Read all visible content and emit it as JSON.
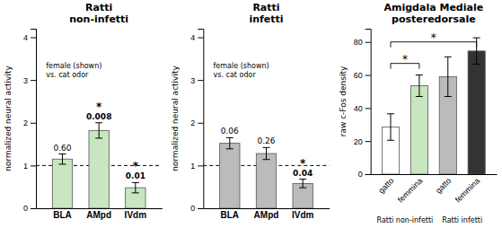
{
  "chart_data": [
    {
      "type": "bar",
      "title": "Ratti\nnon-infetti",
      "ylabel": "normalized neural activity",
      "annotation": "female (shown)\nvs. cat odor",
      "categories": [
        "BLA",
        "AMpd",
        "IVdm"
      ],
      "values": [
        1.15,
        1.82,
        0.48
      ],
      "errors": [
        0.12,
        0.18,
        0.12
      ],
      "colors": [
        "#c8e6c0",
        "#c8e6c0",
        "#c8e6c0"
      ],
      "pvalues": [
        "0.60",
        "0.008",
        "0.01"
      ],
      "stars": [
        null,
        "*",
        "*"
      ],
      "reference_line": 1.0,
      "ylim": [
        0,
        4.2
      ],
      "yticks": [
        0,
        1,
        2,
        3,
        4
      ]
    },
    {
      "type": "bar",
      "title": "Ratti\ninfetti",
      "ylabel": "normalized neural activity",
      "annotation": "female (shown)\nvs. cat odor",
      "categories": [
        "BLA",
        "AMpd",
        "IVdm"
      ],
      "values": [
        1.52,
        1.28,
        0.58
      ],
      "errors": [
        0.13,
        0.14,
        0.1
      ],
      "colors": [
        "#bbbbbb",
        "#bbbbbb",
        "#bbbbbb"
      ],
      "pvalues": [
        "0.06",
        "0.26",
        "0.04"
      ],
      "stars": [
        null,
        null,
        "*"
      ],
      "reference_line": 1.0,
      "ylim": [
        0,
        4.2
      ],
      "yticks": [
        0,
        1,
        2,
        3,
        4
      ]
    },
    {
      "type": "bar",
      "title": "Amigdala Mediale\nposteredorsale",
      "ylabel": "raw c-Fos density",
      "categories": [
        "gatto",
        "femmina",
        "gatto",
        "femmina"
      ],
      "group_labels": [
        "Ratti non-infetti",
        "Ratti infetti"
      ],
      "values": [
        28.5,
        53.5,
        59.0,
        74.5
      ],
      "errors": [
        8.0,
        6.5,
        12.0,
        8.0
      ],
      "colors": [
        "#ffffff",
        "#c8e6c0",
        "#bbbbbb",
        "#333333"
      ],
      "brackets": [
        {
          "from": 0,
          "to": 1,
          "y": 67,
          "label": "*"
        },
        {
          "from": 0,
          "to": 3,
          "y": 80,
          "label": "*"
        }
      ],
      "ylim": [
        0,
        88
      ],
      "yticks": [
        0,
        20,
        40,
        60,
        80
      ]
    }
  ]
}
